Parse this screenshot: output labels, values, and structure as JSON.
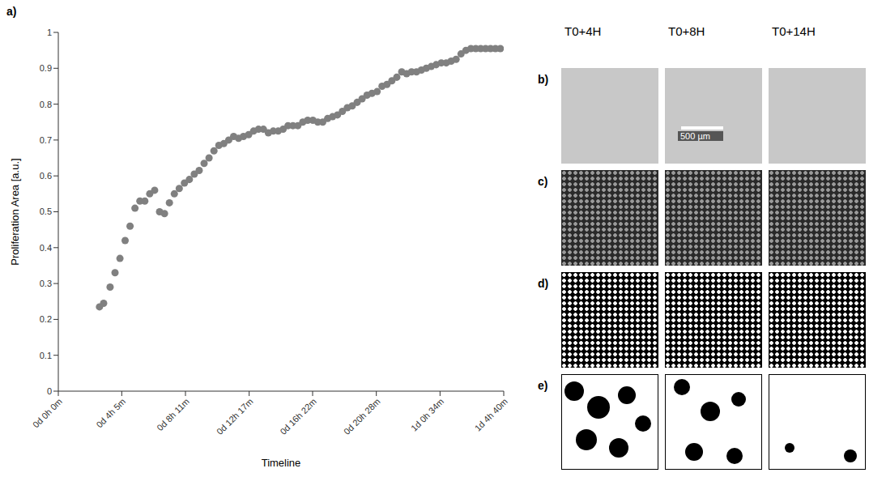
{
  "chart_data": {
    "type": "scatter",
    "x_label": "Timeline",
    "y_label": "Proliferation Area [a.u.]",
    "x": [
      159,
      175,
      200,
      219,
      238,
      258,
      277,
      296,
      315,
      334,
      353,
      372,
      391,
      410,
      429,
      448,
      467,
      487,
      506,
      525,
      544,
      563,
      582,
      601,
      620,
      639,
      658,
      677,
      696,
      715,
      735,
      754,
      773,
      792,
      811,
      830,
      849,
      868,
      887,
      906,
      925,
      944,
      963,
      983,
      1002,
      1021,
      1040,
      1059,
      1078,
      1097,
      1116,
      1135,
      1154,
      1173,
      1192,
      1211,
      1231,
      1250,
      1269,
      1288,
      1307,
      1326,
      1345,
      1364,
      1383,
      1402,
      1421,
      1440,
      1459,
      1479,
      1498,
      1517,
      1536,
      1555,
      1574,
      1593,
      1612,
      1631,
      1650,
      1669,
      1688,
      1707
    ],
    "values": [
      0.235,
      0.245,
      0.29,
      0.33,
      0.37,
      0.42,
      0.46,
      0.51,
      0.53,
      0.53,
      0.55,
      0.56,
      0.5,
      0.495,
      0.525,
      0.55,
      0.565,
      0.58,
      0.59,
      0.605,
      0.615,
      0.635,
      0.65,
      0.67,
      0.685,
      0.69,
      0.7,
      0.71,
      0.705,
      0.71,
      0.715,
      0.725,
      0.73,
      0.73,
      0.72,
      0.725,
      0.725,
      0.73,
      0.74,
      0.74,
      0.74,
      0.75,
      0.755,
      0.755,
      0.75,
      0.75,
      0.76,
      0.765,
      0.77,
      0.78,
      0.79,
      0.795,
      0.805,
      0.815,
      0.825,
      0.83,
      0.835,
      0.85,
      0.855,
      0.865,
      0.875,
      0.89,
      0.885,
      0.89,
      0.89,
      0.895,
      0.9,
      0.905,
      0.91,
      0.915,
      0.915,
      0.92,
      0.925,
      0.94,
      0.95,
      0.955,
      0.955,
      0.955,
      0.955,
      0.955,
      0.955,
      0.955
    ],
    "color": "#808080",
    "marker": "circle",
    "xlim": [
      0,
      1720
    ],
    "xticks": [
      {
        "value": 0,
        "label": "0d 0h 0m"
      },
      {
        "value": 245,
        "label": "0d 4h 5m"
      },
      {
        "value": 491,
        "label": "0d 8h 11m"
      },
      {
        "value": 737,
        "label": "0d 12h 17m"
      },
      {
        "value": 982,
        "label": "0d 16h 22m"
      },
      {
        "value": 1228,
        "label": "0d 20h 28m"
      },
      {
        "value": 1474,
        "label": "1d 0h 34m"
      },
      {
        "value": 1720,
        "label": "1d 4h 40m"
      }
    ],
    "ylim": [
      0,
      1
    ],
    "yticks": [
      0,
      0.1,
      0.2,
      0.3,
      0.4,
      0.5,
      0.6,
      0.7,
      0.8,
      0.9,
      1
    ],
    "grid": false
  },
  "panels": {
    "chart_label": "a)",
    "columns": [
      "T0+4H",
      "T0+8H",
      "T0+14H"
    ],
    "rows": [
      "b)",
      "c)",
      "d)",
      "e)"
    ],
    "scale_bar": "500 µm"
  }
}
